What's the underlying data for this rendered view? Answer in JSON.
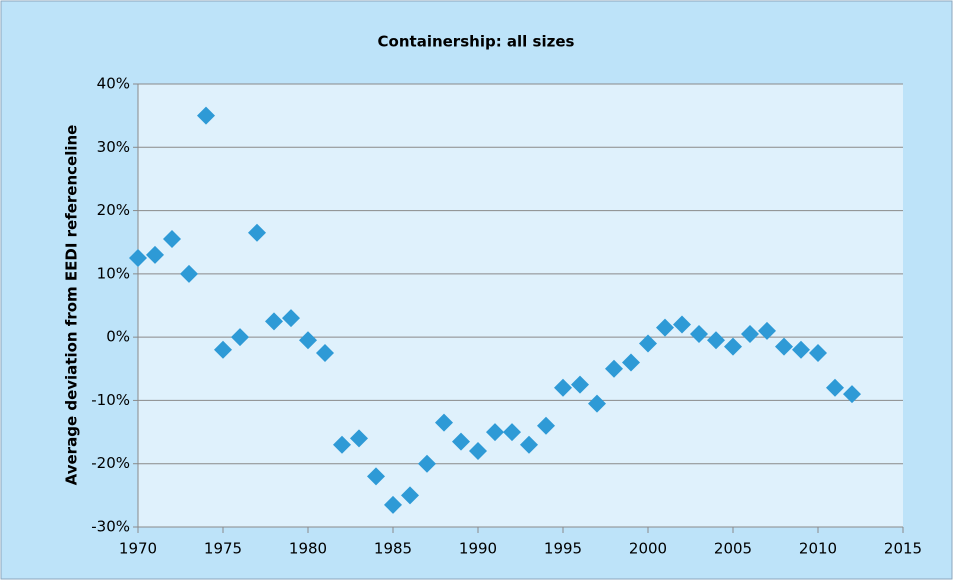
{
  "chart_data": {
    "type": "scatter",
    "title": "Containership: all sizes",
    "y_label": "Average deviation from EEDI referenceline",
    "x": [
      1970,
      1971,
      1972,
      1973,
      1974,
      1975,
      1976,
      1977,
      1978,
      1979,
      1980,
      1981,
      1982,
      1983,
      1984,
      1985,
      1986,
      1987,
      1988,
      1989,
      1990,
      1991,
      1992,
      1993,
      1994,
      1995,
      1996,
      1997,
      1998,
      1999,
      2000,
      2001,
      2002,
      2003,
      2004,
      2005,
      2006,
      2007,
      2008,
      2009,
      2010,
      2011,
      2012
    ],
    "values": [
      12.5,
      13,
      15.5,
      10,
      35,
      -2,
      0,
      16.5,
      2.5,
      3,
      -0.5,
      -2.5,
      -17,
      -16,
      -22,
      -26.5,
      -25,
      -20,
      -13.5,
      -16.5,
      -18,
      -15,
      -15,
      -17,
      -14,
      -8,
      -7.5,
      -10.5,
      -5,
      -4,
      -1,
      1.5,
      2,
      0.5,
      -0.5,
      -1.5,
      0.5,
      1,
      -1.5,
      -2,
      -2.5,
      -8,
      -9
    ],
    "color": "#2e9ad6",
    "xlim": [
      1970,
      2015
    ],
    "xticks": [
      1970,
      1975,
      1980,
      1985,
      1990,
      1995,
      2000,
      2005,
      2010,
      2015
    ],
    "ylim": [
      -30,
      40
    ],
    "yticks": [
      {
        "value": -30,
        "label": "-30%"
      },
      {
        "value": -20,
        "label": "-20%"
      },
      {
        "value": -10,
        "label": "-10%"
      },
      {
        "value": 0,
        "label": "0%"
      },
      {
        "value": 10,
        "label": "10%"
      },
      {
        "value": 20,
        "label": "20%"
      },
      {
        "value": 30,
        "label": "30%"
      },
      {
        "value": 40,
        "label": "40%"
      }
    ],
    "grid": true
  }
}
